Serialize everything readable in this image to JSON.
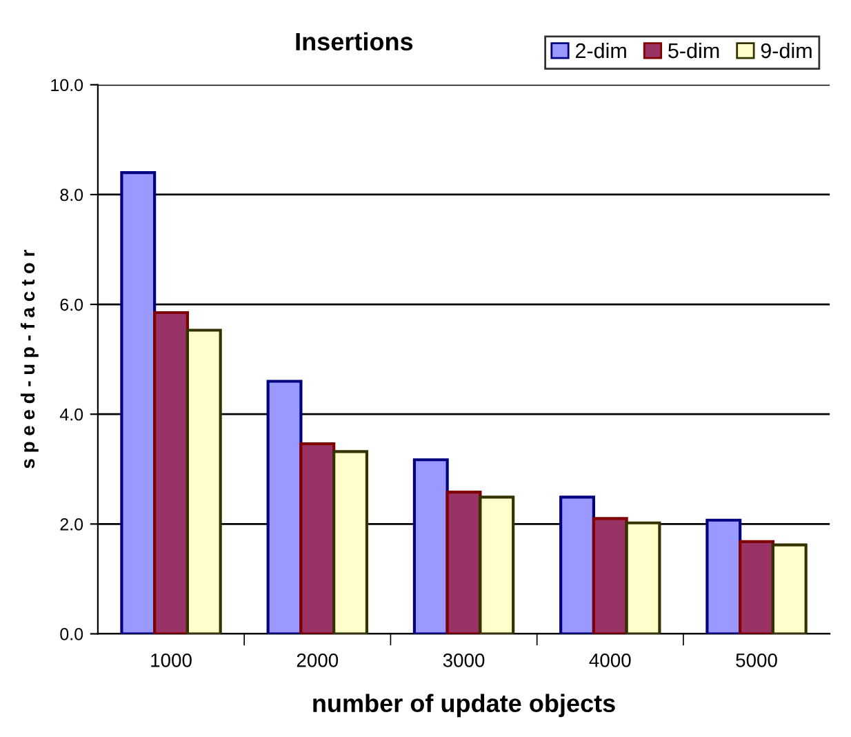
{
  "chart_data": {
    "type": "bar",
    "title": "Insertions",
    "xlabel": "number of update objects",
    "ylabel": "s p e e d - u p - f a c t o r",
    "categories": [
      "1000",
      "2000",
      "3000",
      "4000",
      "5000"
    ],
    "series": [
      {
        "name": "2-dim",
        "color": "#9999ff",
        "values": [
          8.4,
          4.6,
          3.17,
          2.49,
          2.07
        ]
      },
      {
        "name": "5-dim",
        "color": "#993366",
        "values": [
          5.85,
          3.46,
          2.58,
          2.1,
          1.68
        ]
      },
      {
        "name": "9-dim",
        "color": "#ffffcc",
        "values": [
          5.53,
          3.32,
          2.49,
          2.02,
          1.62
        ]
      }
    ],
    "ylim": [
      0,
      10
    ],
    "yticks": [
      {
        "value": 0,
        "label": "0.0"
      },
      {
        "value": 2,
        "label": "2.0"
      },
      {
        "value": 4,
        "label": "4.0"
      },
      {
        "value": 6,
        "label": "6.0"
      },
      {
        "value": 8,
        "label": "8.0"
      },
      {
        "value": 10,
        "label": "10.0"
      }
    ],
    "grid": "y",
    "legend": "top right"
  }
}
